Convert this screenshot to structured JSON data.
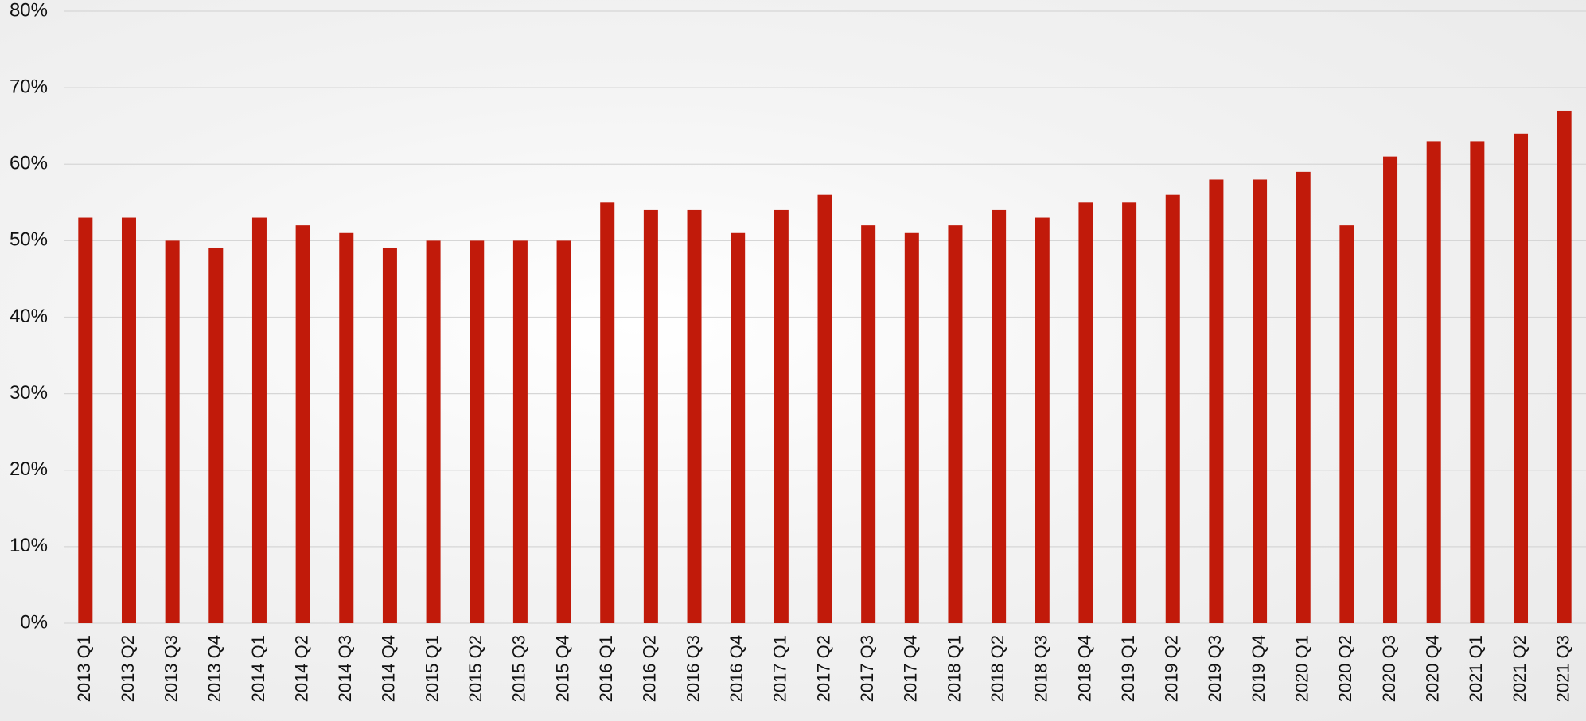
{
  "chart_data": {
    "type": "bar",
    "categories": [
      "2013 Q1",
      "2013 Q2",
      "2013 Q3",
      "2013 Q4",
      "2014 Q1",
      "2014 Q2",
      "2014 Q3",
      "2014 Q4",
      "2015 Q1",
      "2015 Q2",
      "2015 Q3",
      "2015 Q4",
      "2016 Q1",
      "2016 Q2",
      "2016 Q3",
      "2016 Q4",
      "2017 Q1",
      "2017 Q2",
      "2017 Q3",
      "2017 Q4",
      "2018 Q1",
      "2018 Q2",
      "2018 Q3",
      "2018 Q4",
      "2019 Q1",
      "2019 Q2",
      "2019 Q3",
      "2019 Q4",
      "2020 Q1",
      "2020 Q2",
      "2020 Q3",
      "2020 Q4",
      "2021 Q1",
      "2021 Q2",
      "2021 Q3"
    ],
    "values": [
      53,
      53,
      50,
      49,
      53,
      52,
      51,
      49,
      50,
      50,
      50,
      50,
      55,
      54,
      54,
      51,
      54,
      56,
      52,
      51,
      52,
      54,
      53,
      55,
      55,
      56,
      58,
      58,
      59,
      52,
      61,
      63,
      63,
      64,
      67
    ],
    "color": "#c11a0a",
    "ylim": [
      0,
      80
    ],
    "yticks": [
      {
        "value": 0,
        "label": "0%"
      },
      {
        "value": 10,
        "label": "10%"
      },
      {
        "value": 20,
        "label": "20%"
      },
      {
        "value": 30,
        "label": "30%"
      },
      {
        "value": 40,
        "label": "40%"
      },
      {
        "value": 50,
        "label": "50%"
      },
      {
        "value": 60,
        "label": "60%"
      },
      {
        "value": 70,
        "label": "70%"
      },
      {
        "value": 80,
        "label": "80%"
      }
    ],
    "grid": true
  }
}
